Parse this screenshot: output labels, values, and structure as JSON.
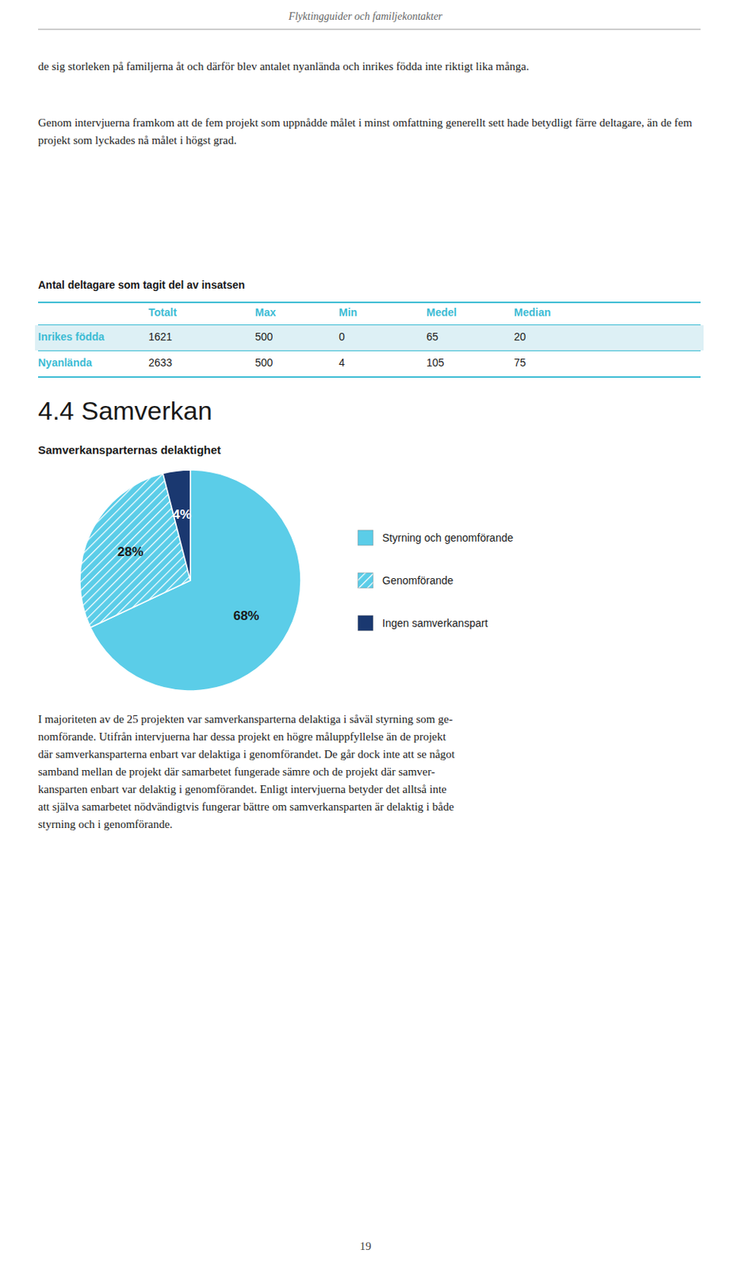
{
  "page_title": "Flyktingguider och familjekontakter",
  "page_number": "19",
  "paragraphs": [
    "de sig storleken på familjerna åt och därför blev antalet nyanlända och inrikes födda inte riktigt lika många.",
    "Genom intervjuerna framkom att de fem projekt som uppnådde målet i minst omfattning generellt sett hade betydligt färre deltagare, än de fem projekt som lyckades nå målet i högst grad."
  ],
  "table": {
    "title": "Antal deltagare som tagit del av insatsen",
    "headers": [
      "Totalt",
      "Max",
      "Min",
      "Medel",
      "Median"
    ],
    "rows": [
      {
        "label": "Inrikes födda",
        "values": [
          1621,
          500,
          0,
          65,
          20
        ]
      },
      {
        "label": "Nyanlända",
        "values": [
          2633,
          500,
          4,
          105,
          75
        ]
      }
    ]
  },
  "section_title": "4.4 Samverkan",
  "chart_data": {
    "type": "pie",
    "title": "Samverkansparternas delaktighet",
    "categories": [
      "Styrning och genomförande",
      "Genomförande",
      "Ingen samverkanspart"
    ],
    "values": [
      68,
      28,
      4
    ],
    "value_labels": [
      "68%",
      "28%",
      "4%"
    ],
    "colors": [
      "#5bcde8",
      "#5bcde8",
      "#1a3870"
    ],
    "data_labels": true,
    "legend": "right"
  },
  "closing_lines": [
    "I majoriteten av de 25 projekten var samverkansparterna delaktiga i såväl styrning som ge-",
    "nomförande. Utifrån intervjuerna har dessa projekt en högre måluppfyllelse än de projekt",
    "där samverkansparterna enbart var delaktiga i genomförandet. De går dock inte att se något",
    "samband mellan de projekt där samarbetet fungerade sämre och de projekt där samver-",
    "kansparten enbart var delaktig i genomförandet. Enligt intervjuerna betyder det alltså inte",
    "att själva samarbetet nödvändigtvis fungerar bättre om samverkansparten är delaktig i både",
    "styrning och i genomförande."
  ]
}
